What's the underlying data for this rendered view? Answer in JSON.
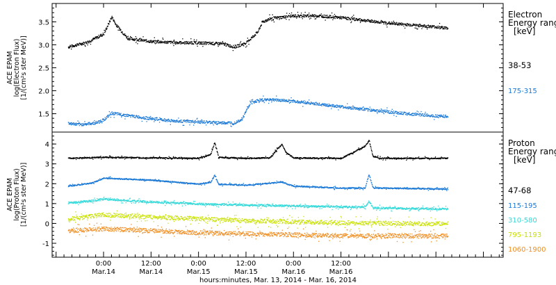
{
  "chart_data": [
    {
      "type": "scatter",
      "panel": "top",
      "ylabel_lines": [
        "ACE EPAM",
        "log(Electron Flux)",
        "[1/(cm²s ster MeV)]"
      ],
      "y_ticks": [
        "1.5",
        "2.0",
        "2.5",
        "3.0",
        "3.5"
      ],
      "ylim": [
        1.1,
        3.9
      ],
      "legend_title_lines": [
        "Electron",
        "Energy ranges",
        "[keV]"
      ],
      "series": [
        {
          "name": "38-53",
          "color": "#000000",
          "x": [
            -9,
            -4,
            0,
            2,
            3,
            6,
            12,
            18,
            24,
            30,
            33,
            36,
            39,
            40,
            42,
            48,
            54,
            60,
            66,
            72,
            78,
            84,
            87
          ],
          "values": [
            2.96,
            3.07,
            3.25,
            3.62,
            3.45,
            3.15,
            3.08,
            3.06,
            3.05,
            3.03,
            2.96,
            3.05,
            3.3,
            3.5,
            3.58,
            3.64,
            3.64,
            3.6,
            3.54,
            3.48,
            3.44,
            3.4,
            3.37
          ]
        },
        {
          "name": "175-315",
          "color": "#1a78d6",
          "x": [
            -9,
            -6,
            -2,
            0,
            2,
            6,
            12,
            18,
            24,
            30,
            33,
            35,
            36,
            37,
            39,
            42,
            48,
            54,
            60,
            66,
            72,
            78,
            84,
            87
          ],
          "values": [
            1.3,
            1.27,
            1.31,
            1.38,
            1.52,
            1.47,
            1.4,
            1.35,
            1.33,
            1.31,
            1.31,
            1.4,
            1.58,
            1.74,
            1.8,
            1.82,
            1.78,
            1.72,
            1.66,
            1.6,
            1.55,
            1.5,
            1.46,
            1.45
          ]
        }
      ]
    },
    {
      "type": "scatter",
      "panel": "bottom",
      "ylabel_lines": [
        "ACE EPAM",
        "log(Proton Flux)",
        "[1/(cm²s ster MeV)]"
      ],
      "y_ticks": [
        "-1",
        "0",
        "1",
        "2",
        "3",
        "4"
      ],
      "ylim": [
        -1.7,
        4.6
      ],
      "legend_title_lines": [
        "Proton",
        "Energy ranges",
        "[keV]"
      ],
      "series": [
        {
          "name": "47-68",
          "color": "#000000",
          "x": [
            -9,
            0,
            12,
            24,
            27,
            28,
            29,
            36,
            42,
            44,
            45,
            46,
            48,
            60,
            66,
            67,
            68,
            70,
            87
          ],
          "values": [
            3.3,
            3.35,
            3.32,
            3.3,
            3.5,
            4.1,
            3.35,
            3.3,
            3.32,
            3.8,
            4.0,
            3.6,
            3.32,
            3.3,
            3.9,
            4.2,
            3.4,
            3.3,
            3.3
          ]
        },
        {
          "name": "115-195",
          "color": "#1a78d6",
          "x": [
            -9,
            -3,
            0,
            12,
            24,
            27,
            28,
            29,
            36,
            45,
            48,
            60,
            66,
            67,
            68,
            70,
            87
          ],
          "values": [
            1.9,
            2.05,
            2.3,
            2.2,
            2.0,
            2.1,
            2.45,
            2.0,
            1.95,
            2.1,
            1.9,
            1.8,
            1.8,
            2.5,
            1.8,
            1.8,
            1.75
          ]
        },
        {
          "name": "310-580",
          "color": "#30d8d8",
          "x": [
            -9,
            -3,
            0,
            12,
            24,
            36,
            48,
            60,
            66,
            67,
            68,
            87
          ],
          "values": [
            1.05,
            1.15,
            1.25,
            1.1,
            1.0,
            0.95,
            0.9,
            0.85,
            0.85,
            1.15,
            0.8,
            0.75
          ]
        },
        {
          "name": "795-1193",
          "color": "#c8e000",
          "x": [
            -9,
            0,
            12,
            24,
            36,
            48,
            60,
            87
          ],
          "values": [
            0.25,
            0.45,
            0.35,
            0.25,
            0.15,
            0.1,
            0.05,
            0.0
          ]
        },
        {
          "name": "1060-1900",
          "color": "#f08c1e",
          "x": [
            -9,
            0,
            12,
            24,
            36,
            48,
            60,
            87
          ],
          "values": [
            -0.35,
            -0.25,
            -0.35,
            -0.45,
            -0.5,
            -0.55,
            -0.6,
            -0.62
          ]
        }
      ]
    }
  ],
  "x_axis": {
    "unit": "hours relative to Mar. 14, 2014 00:00",
    "range": [
      -13,
      101
    ],
    "ticks": [
      {
        "x": 0,
        "time": "0:00",
        "date": "Mar.14"
      },
      {
        "x": 12,
        "time": "12:00",
        "date": "Mar.14"
      },
      {
        "x": 24,
        "time": "0:00",
        "date": "Mar.15"
      },
      {
        "x": 36,
        "time": "12:00",
        "date": "Mar.15"
      },
      {
        "x": 48,
        "time": "0:00",
        "date": "Mar.16"
      },
      {
        "x": 60,
        "time": "12:00",
        "date": "Mar.16"
      }
    ],
    "label": "hours:minutes, Mar. 13, 2014 - Mar. 16, 2014"
  }
}
